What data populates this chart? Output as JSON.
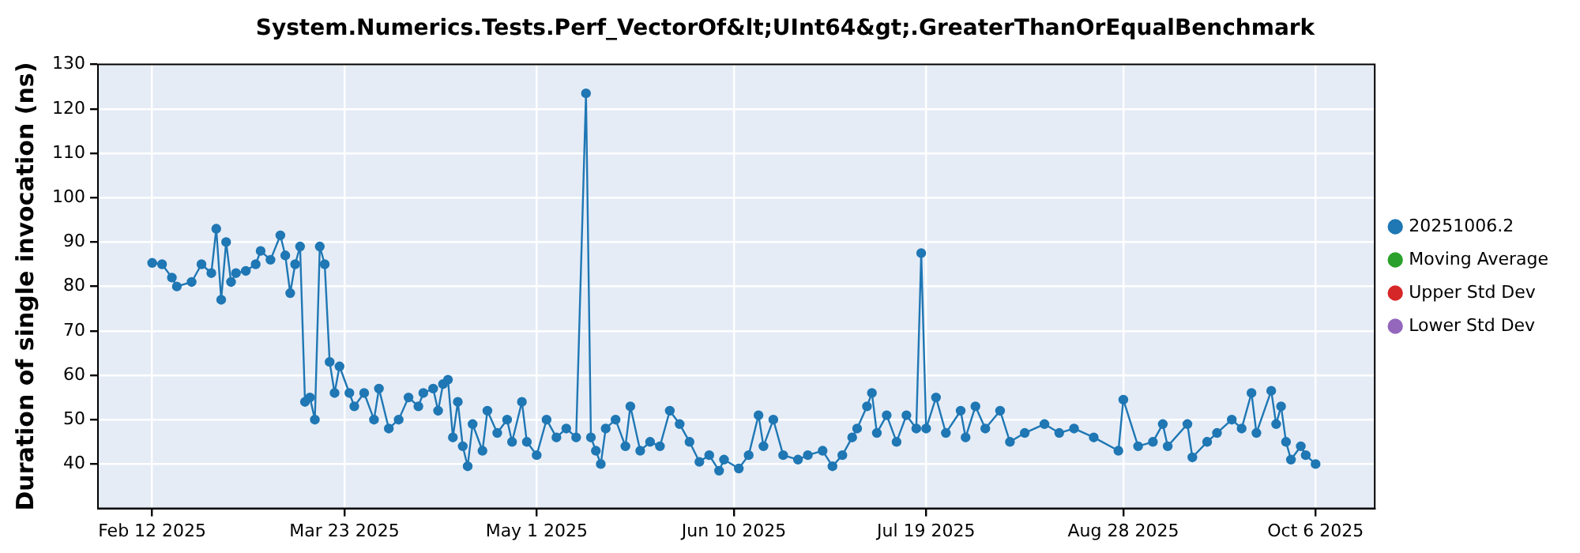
{
  "chart_data": {
    "type": "line",
    "title": "System.Numerics.Tests.Perf_VectorOf&lt;UInt64&gt;.GreaterThanOrEqualBenchmark",
    "ylabel": "Duration of single invocation (ns)",
    "xlim": [
      "2025-02-01",
      "2025-10-18"
    ],
    "xticks": [
      {
        "value": "2025-02-12",
        "label": "Feb 12 2025"
      },
      {
        "value": "2025-03-23",
        "label": "Mar 23 2025"
      },
      {
        "value": "2025-05-01",
        "label": "May 1 2025"
      },
      {
        "value": "2025-06-10",
        "label": "Jun 10 2025"
      },
      {
        "value": "2025-07-19",
        "label": "Jul 19 2025"
      },
      {
        "value": "2025-08-28",
        "label": "Aug 28 2025"
      },
      {
        "value": "2025-10-06",
        "label": "Oct 6 2025"
      }
    ],
    "ylim": [
      30,
      130
    ],
    "yticks": [
      40,
      50,
      60,
      70,
      80,
      90,
      100,
      110,
      120,
      130
    ],
    "grid": true,
    "legend": "right",
    "marker": "circle",
    "series": [
      {
        "name": "20251006.2",
        "color": "#1f77b4",
        "x": [
          "2025-02-12",
          "2025-02-14",
          "2025-02-16",
          "2025-02-17",
          "2025-02-20",
          "2025-02-22",
          "2025-02-24",
          "2025-02-25",
          "2025-02-26",
          "2025-02-27",
          "2025-02-28",
          "2025-03-01",
          "2025-03-03",
          "2025-03-05",
          "2025-03-06",
          "2025-03-08",
          "2025-03-10",
          "2025-03-11",
          "2025-03-12",
          "2025-03-13",
          "2025-03-14",
          "2025-03-15",
          "2025-03-16",
          "2025-03-17",
          "2025-03-18",
          "2025-03-19",
          "2025-03-20",
          "2025-03-21",
          "2025-03-22",
          "2025-03-24",
          "2025-03-25",
          "2025-03-27",
          "2025-03-29",
          "2025-03-30",
          "2025-04-01",
          "2025-04-03",
          "2025-04-05",
          "2025-04-07",
          "2025-04-08",
          "2025-04-10",
          "2025-04-11",
          "2025-04-12",
          "2025-04-13",
          "2025-04-14",
          "2025-04-15",
          "2025-04-16",
          "2025-04-17",
          "2025-04-18",
          "2025-04-20",
          "2025-04-21",
          "2025-04-23",
          "2025-04-25",
          "2025-04-26",
          "2025-04-28",
          "2025-04-29",
          "2025-05-01",
          "2025-05-03",
          "2025-05-05",
          "2025-05-07",
          "2025-05-09",
          "2025-05-11",
          "2025-05-12",
          "2025-05-13",
          "2025-05-14",
          "2025-05-15",
          "2025-05-17",
          "2025-05-19",
          "2025-05-20",
          "2025-05-22",
          "2025-05-24",
          "2025-05-26",
          "2025-05-28",
          "2025-05-30",
          "2025-06-01",
          "2025-06-03",
          "2025-06-05",
          "2025-06-07",
          "2025-06-08",
          "2025-06-11",
          "2025-06-13",
          "2025-06-15",
          "2025-06-16",
          "2025-06-18",
          "2025-06-20",
          "2025-06-23",
          "2025-06-25",
          "2025-06-28",
          "2025-06-30",
          "2025-07-02",
          "2025-07-04",
          "2025-07-05",
          "2025-07-07",
          "2025-07-08",
          "2025-07-09",
          "2025-07-11",
          "2025-07-13",
          "2025-07-15",
          "2025-07-17",
          "2025-07-18",
          "2025-07-19",
          "2025-07-21",
          "2025-07-23",
          "2025-07-26",
          "2025-07-27",
          "2025-07-29",
          "2025-07-31",
          "2025-08-03",
          "2025-08-05",
          "2025-08-08",
          "2025-08-12",
          "2025-08-15",
          "2025-08-18",
          "2025-08-22",
          "2025-08-27",
          "2025-08-28",
          "2025-08-31",
          "2025-09-03",
          "2025-09-05",
          "2025-09-06",
          "2025-09-10",
          "2025-09-11",
          "2025-09-14",
          "2025-09-16",
          "2025-09-19",
          "2025-09-21",
          "2025-09-23",
          "2025-09-24",
          "2025-09-27",
          "2025-09-28",
          "2025-09-29",
          "2025-09-30",
          "2025-10-01",
          "2025-10-03",
          "2025-10-04",
          "2025-10-06"
        ],
        "values": [
          85.3,
          85,
          82,
          80,
          81,
          85,
          83,
          93,
          77,
          90,
          81,
          83,
          83.5,
          85,
          88,
          86,
          91.5,
          87,
          78.5,
          85,
          89,
          54,
          55,
          50,
          89,
          85,
          63,
          56,
          62,
          56,
          53,
          56,
          50,
          57,
          48,
          50,
          55,
          53,
          56,
          57,
          52,
          58,
          59,
          46,
          54,
          44,
          39.5,
          49,
          43,
          52,
          47,
          50,
          45,
          54,
          45,
          42,
          50,
          46,
          48,
          46,
          123.5,
          46,
          43,
          40,
          48,
          50,
          44,
          53,
          43,
          45,
          44,
          52,
          49,
          45,
          40.5,
          42,
          38.5,
          41,
          39,
          42,
          51,
          44,
          50,
          42,
          41,
          42,
          43,
          39.5,
          42,
          46,
          48,
          53,
          56,
          47,
          51,
          45,
          51,
          48,
          87.5,
          48,
          55,
          47,
          52,
          46,
          53,
          48,
          52,
          45,
          47,
          49,
          47,
          48,
          46,
          43,
          54.5,
          44,
          45,
          49,
          44,
          49,
          41.5,
          45,
          47,
          50,
          48,
          56,
          47,
          56.5,
          49,
          53,
          45,
          41,
          44,
          42,
          40
        ]
      },
      {
        "name": "Moving Average",
        "color": "#2ca02c"
      },
      {
        "name": "Upper Std Dev",
        "color": "#d62728"
      },
      {
        "name": "Lower Std Dev",
        "color": "#9467bd"
      }
    ]
  }
}
